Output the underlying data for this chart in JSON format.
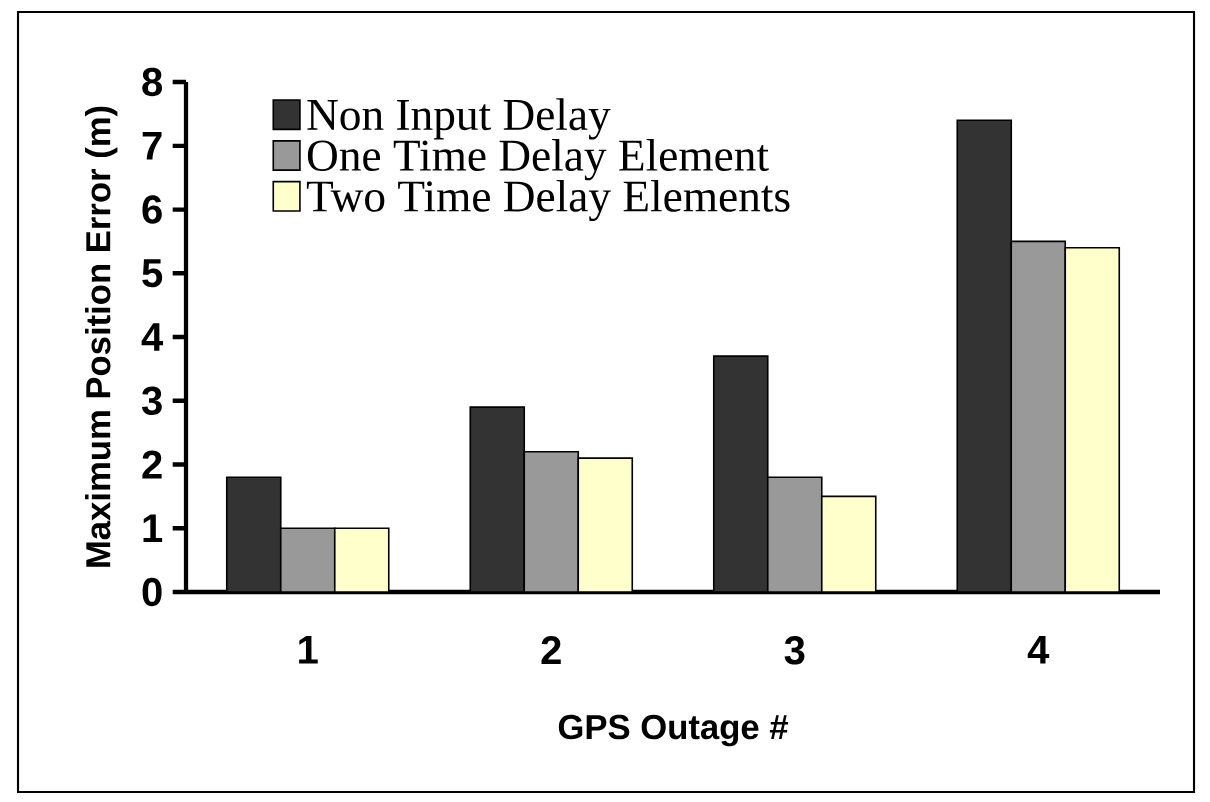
{
  "chart_data": {
    "type": "bar",
    "xlabel": "GPS Outage #",
    "ylabel": "Maximum Position Error (m)",
    "categories": [
      "1",
      "2",
      "3",
      "4"
    ],
    "series": [
      {
        "name": "Non Input Delay",
        "color": "#333333",
        "values": [
          1.8,
          2.9,
          3.7,
          7.4
        ]
      },
      {
        "name": "One Time Delay Element",
        "color": "#999999",
        "values": [
          1.0,
          2.2,
          1.8,
          5.5
        ]
      },
      {
        "name": "Two Time Delay Elements",
        "color": "#ffffcc",
        "values": [
          1.0,
          2.1,
          1.5,
          5.4
        ]
      }
    ],
    "ylim": [
      0,
      8
    ],
    "yticks": [
      0,
      1,
      2,
      3,
      4,
      5,
      6,
      7,
      8
    ],
    "grid": false,
    "legend": "top left"
  }
}
